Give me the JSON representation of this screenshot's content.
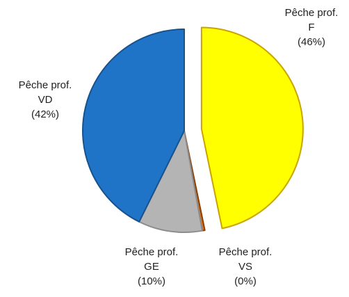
{
  "chart_data": {
    "type": "pie",
    "categories": [
      "Pêche prof. F",
      "Pêche prof. VS",
      "Pêche prof. GE",
      "Pêche prof. VD"
    ],
    "values": [
      46,
      0.4,
      10,
      42
    ],
    "value_labels": [
      "(46%)",
      "(0%)",
      "(10%)",
      "(42%)"
    ],
    "colors": [
      "#ffff00",
      "#e0731a",
      "#b4b4b4",
      "#1f74c7"
    ]
  }
}
